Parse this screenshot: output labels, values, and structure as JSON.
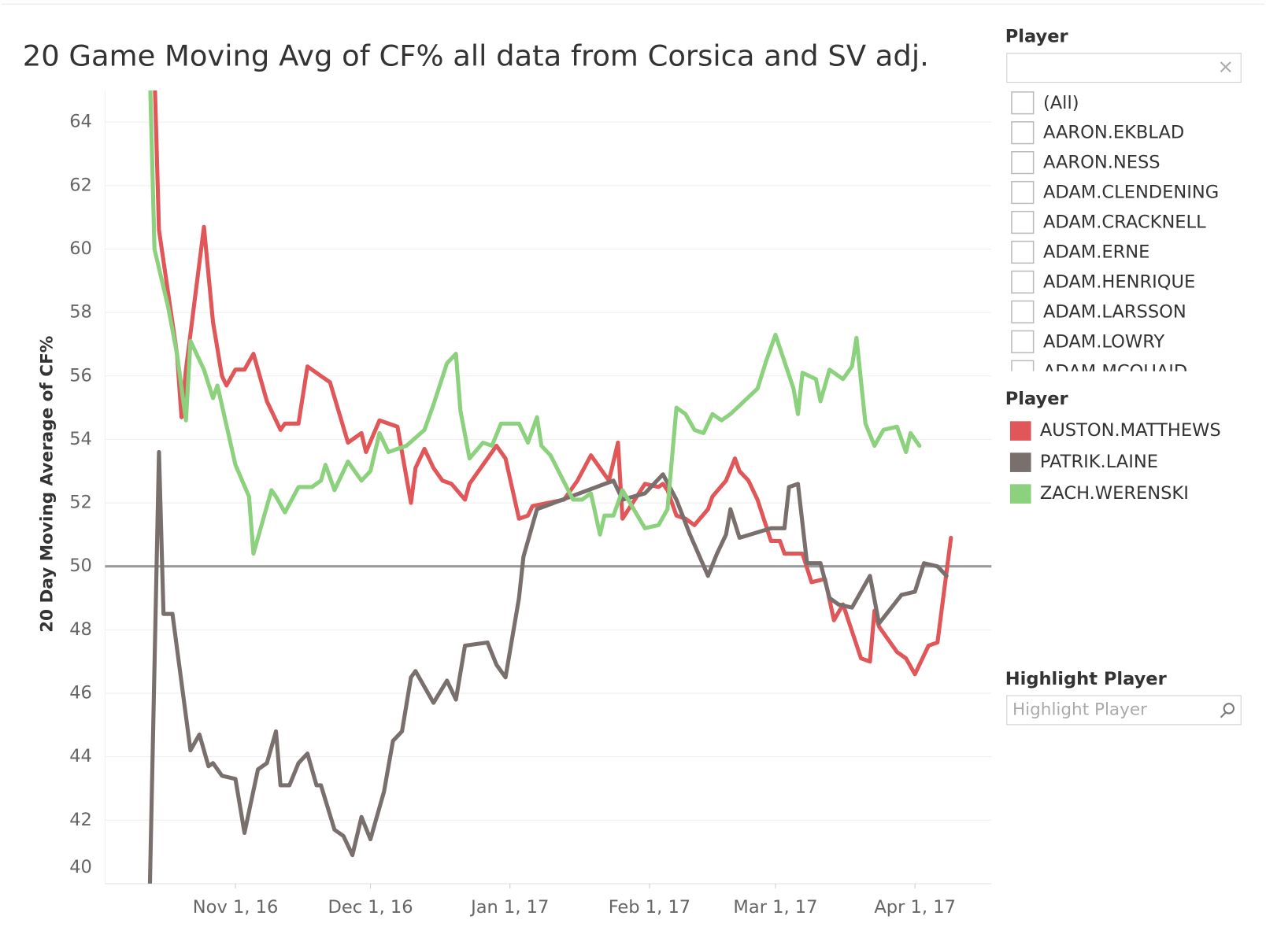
{
  "chart_data": {
    "type": "line",
    "title": "20 Game Moving Avg of CF% all data from Corsica and SV adj.",
    "y_label": "20 Day Moving Average of CF%",
    "legend_title": "Player",
    "xlim": [
      "2016-10-03",
      "2017-04-18"
    ],
    "xticks": [
      {
        "value": "2016-11-01",
        "label": "Nov 1, 16"
      },
      {
        "value": "2016-12-01",
        "label": "Dec 1, 16"
      },
      {
        "value": "2017-01-01",
        "label": "Jan 1, 17"
      },
      {
        "value": "2017-02-01",
        "label": "Feb 1, 17"
      },
      {
        "value": "2017-03-01",
        "label": "Mar 1, 17"
      },
      {
        "value": "2017-04-01",
        "label": "Apr 1, 17"
      }
    ],
    "ylim": [
      40,
      65
    ],
    "yticks": [
      40,
      42,
      44,
      46,
      48,
      50,
      52,
      54,
      56,
      58,
      60,
      62,
      64
    ],
    "grid": true,
    "reference_line": 50,
    "series": [
      {
        "name": "AUSTON.MATTHEWS",
        "color": "#e15759",
        "x": [
          "2016-10-14",
          "2016-10-15",
          "2016-10-19",
          "2016-10-20",
          "2016-10-21",
          "2016-10-25",
          "2016-10-27",
          "2016-10-29",
          "2016-10-30",
          "2016-11-01",
          "2016-11-03",
          "2016-11-05",
          "2016-11-08",
          "2016-11-11",
          "2016-11-12",
          "2016-11-15",
          "2016-11-17",
          "2016-11-20",
          "2016-11-22",
          "2016-11-26",
          "2016-11-29",
          "2016-11-30",
          "2016-12-03",
          "2016-12-07",
          "2016-12-10",
          "2016-12-11",
          "2016-12-13",
          "2016-12-15",
          "2016-12-17",
          "2016-12-19",
          "2016-12-22",
          "2016-12-23",
          "2016-12-29",
          "2016-12-31",
          "2017-01-03",
          "2017-01-05",
          "2017-01-06",
          "2017-01-13",
          "2017-01-16",
          "2017-01-19",
          "2017-01-23",
          "2017-01-25",
          "2017-01-26",
          "2017-01-31",
          "2017-02-03",
          "2017-02-04",
          "2017-02-05",
          "2017-02-07",
          "2017-02-09",
          "2017-02-11",
          "2017-02-14",
          "2017-02-15",
          "2017-02-18",
          "2017-02-20",
          "2017-02-21",
          "2017-02-23",
          "2017-02-25",
          "2017-02-28",
          "2017-03-02",
          "2017-03-03",
          "2017-03-07",
          "2017-03-09",
          "2017-03-12",
          "2017-03-14",
          "2017-03-16",
          "2017-03-20",
          "2017-03-22",
          "2017-03-23",
          "2017-03-24",
          "2017-03-28",
          "2017-03-30",
          "2017-04-01",
          "2017-04-04",
          "2017-04-06",
          "2017-04-09"
        ],
        "values": [
          65.6,
          60.6,
          56.7,
          54.7,
          56.2,
          60.7,
          57.7,
          56.0,
          55.7,
          56.2,
          56.2,
          56.7,
          55.2,
          54.3,
          54.5,
          54.5,
          56.3,
          56.0,
          55.8,
          53.9,
          54.2,
          53.6,
          54.6,
          54.4,
          52.0,
          53.1,
          53.7,
          53.1,
          52.7,
          52.6,
          52.1,
          52.6,
          53.8,
          53.4,
          51.5,
          51.6,
          51.9,
          52.1,
          52.7,
          53.5,
          52.7,
          53.9,
          51.5,
          52.6,
          52.5,
          52.6,
          52.4,
          51.6,
          51.5,
          51.3,
          51.8,
          52.2,
          52.7,
          53.4,
          53.0,
          52.7,
          52.1,
          50.8,
          50.8,
          50.4,
          50.4,
          49.5,
          49.6,
          48.3,
          48.8,
          47.1,
          47.0,
          48.6,
          48.1,
          47.3,
          47.1,
          46.6,
          47.5,
          47.6,
          50.9
        ]
      },
      {
        "name": "PATRIK.LAINE",
        "color": "#79706e",
        "x": [
          "2016-10-13",
          "2016-10-15",
          "2016-10-16",
          "2016-10-18",
          "2016-10-22",
          "2016-10-24",
          "2016-10-26",
          "2016-10-27",
          "2016-10-29",
          "2016-11-01",
          "2016-11-03",
          "2016-11-06",
          "2016-11-08",
          "2016-11-10",
          "2016-11-11",
          "2016-11-13",
          "2016-11-15",
          "2016-11-17",
          "2016-11-19",
          "2016-11-20",
          "2016-11-23",
          "2016-11-25",
          "2016-11-27",
          "2016-11-29",
          "2016-12-01",
          "2016-12-04",
          "2016-12-06",
          "2016-12-08",
          "2016-12-10",
          "2016-12-11",
          "2016-12-15",
          "2016-12-18",
          "2016-12-20",
          "2016-12-22",
          "2016-12-27",
          "2016-12-29",
          "2016-12-31",
          "2017-01-03",
          "2017-01-04",
          "2017-01-07",
          "2017-01-24",
          "2017-01-26",
          "2017-01-31",
          "2017-02-04",
          "2017-02-07",
          "2017-02-10",
          "2017-02-14",
          "2017-02-16",
          "2017-02-18",
          "2017-02-19",
          "2017-02-21",
          "2017-02-28",
          "2017-03-03",
          "2017-03-04",
          "2017-03-06",
          "2017-03-08",
          "2017-03-11",
          "2017-03-13",
          "2017-03-15",
          "2017-03-18",
          "2017-03-22",
          "2017-03-24",
          "2017-03-29",
          "2017-04-01",
          "2017-04-03",
          "2017-04-06",
          "2017-04-08"
        ],
        "values": [
          40.0,
          53.6,
          48.5,
          48.5,
          44.2,
          44.7,
          43.7,
          43.8,
          43.4,
          43.3,
          41.6,
          43.6,
          43.8,
          44.8,
          43.1,
          43.1,
          43.8,
          44.1,
          43.1,
          43.1,
          41.7,
          41.5,
          40.9,
          42.1,
          41.4,
          42.9,
          44.5,
          44.8,
          46.5,
          46.7,
          45.7,
          46.4,
          45.8,
          47.5,
          47.6,
          46.9,
          46.5,
          49.0,
          50.3,
          51.8,
          52.7,
          52.1,
          52.3,
          52.9,
          52.1,
          51.0,
          49.7,
          50.4,
          51.0,
          51.8,
          50.9,
          51.2,
          51.2,
          52.5,
          52.6,
          50.1,
          50.1,
          49.0,
          48.8,
          48.7,
          49.7,
          48.2,
          49.1,
          49.2,
          50.1,
          50.0,
          49.7
        ]
      },
      {
        "name": "ZACH.WERENSKI",
        "color": "#8cd17d",
        "x": [
          "2016-10-13",
          "2016-10-14",
          "2016-10-17",
          "2016-10-19",
          "2016-10-21",
          "2016-10-22",
          "2016-10-25",
          "2016-10-27",
          "2016-10-28",
          "2016-11-01",
          "2016-11-04",
          "2016-11-05",
          "2016-11-09",
          "2016-11-10",
          "2016-11-12",
          "2016-11-15",
          "2016-11-18",
          "2016-11-20",
          "2016-11-21",
          "2016-11-23",
          "2016-11-26",
          "2016-11-29",
          "2016-12-01",
          "2016-12-03",
          "2016-12-05",
          "2016-12-09",
          "2016-12-13",
          "2016-12-15",
          "2016-12-18",
          "2016-12-20",
          "2016-12-21",
          "2016-12-23",
          "2016-12-26",
          "2016-12-28",
          "2016-12-30",
          "2017-01-03",
          "2017-01-05",
          "2017-01-07",
          "2017-01-08",
          "2017-01-10",
          "2017-01-15",
          "2017-01-17",
          "2017-01-19",
          "2017-01-21",
          "2017-01-22",
          "2017-01-24",
          "2017-01-26",
          "2017-01-31",
          "2017-02-03",
          "2017-02-05",
          "2017-02-07",
          "2017-02-09",
          "2017-02-11",
          "2017-02-13",
          "2017-02-15",
          "2017-02-17",
          "2017-02-19",
          "2017-02-25",
          "2017-02-27",
          "2017-03-01",
          "2017-03-05",
          "2017-03-06",
          "2017-03-07",
          "2017-03-10",
          "2017-03-11",
          "2017-03-13",
          "2017-03-16",
          "2017-03-18",
          "2017-03-19",
          "2017-03-21",
          "2017-03-23",
          "2017-03-25",
          "2017-03-28",
          "2017-03-30",
          "2017-03-31",
          "2017-04-02"
        ],
        "values": [
          65.5,
          60.0,
          58.2,
          56.7,
          54.6,
          57.1,
          56.2,
          55.3,
          55.7,
          53.2,
          52.2,
          50.4,
          52.4,
          52.2,
          51.7,
          52.5,
          52.5,
          52.7,
          53.2,
          52.4,
          53.3,
          52.7,
          53.0,
          54.2,
          53.6,
          53.8,
          54.3,
          55.1,
          56.4,
          56.7,
          54.9,
          53.4,
          53.9,
          53.8,
          54.5,
          54.5,
          53.9,
          54.7,
          53.8,
          53.5,
          52.1,
          52.1,
          52.3,
          51.0,
          51.6,
          51.6,
          52.4,
          51.2,
          51.3,
          51.8,
          55.0,
          54.8,
          54.3,
          54.2,
          54.8,
          54.6,
          54.8,
          55.6,
          56.5,
          57.3,
          55.6,
          54.8,
          56.1,
          55.9,
          55.2,
          56.2,
          55.9,
          56.3,
          57.2,
          54.5,
          53.8,
          54.3,
          54.4,
          53.6,
          54.2,
          53.8
        ]
      }
    ]
  },
  "filter": {
    "title": "Player",
    "items": [
      "(All)",
      "AARON.EKBLAD",
      "AARON.NESS",
      "ADAM.CLENDENING",
      "ADAM.CRACKNELL",
      "ADAM.ERNE",
      "ADAM.HENRIQUE",
      "ADAM.LARSSON",
      "ADAM.LOWRY",
      "ADAM.MCQUAID"
    ]
  },
  "highlight": {
    "title": "Highlight Player",
    "placeholder": "Highlight Player"
  }
}
